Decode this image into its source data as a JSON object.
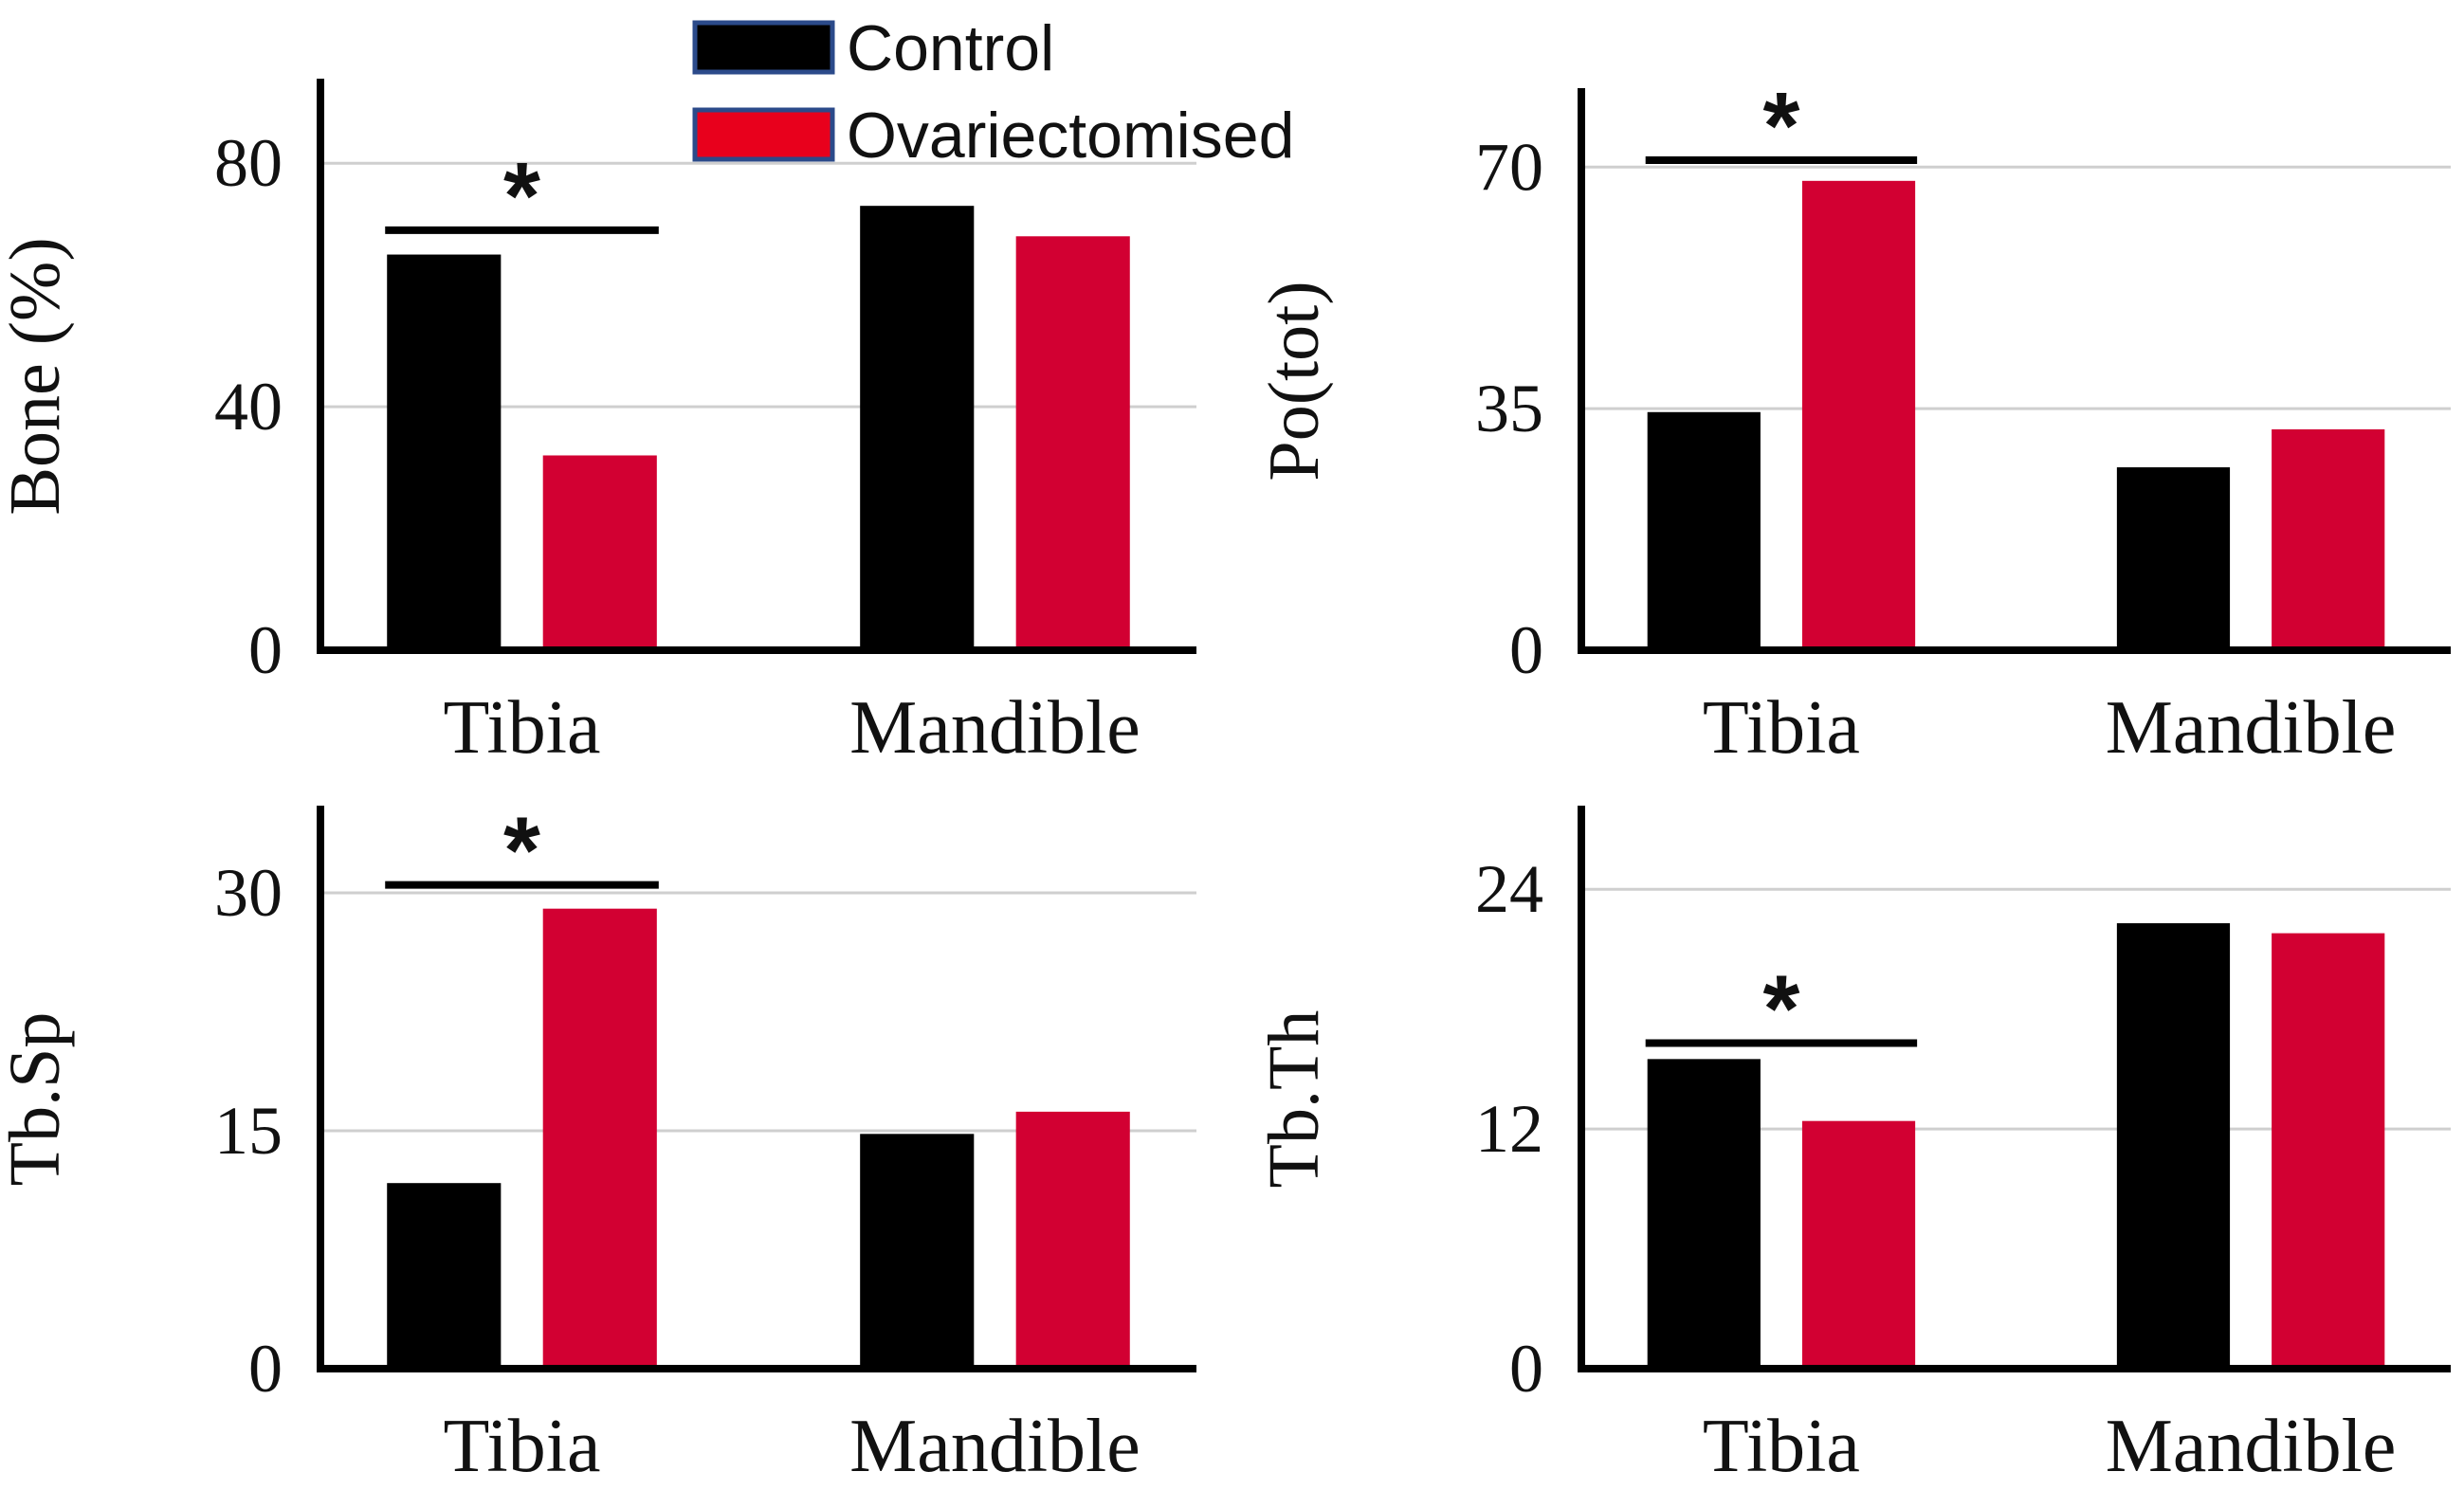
{
  "legend": {
    "entries": [
      {
        "name": "Control",
        "color": "#000000",
        "border": "#2b4a8a"
      },
      {
        "name": "Ovariectomised",
        "color": "#e8001c",
        "border": "#2b4a8a"
      }
    ]
  },
  "colors": {
    "control_bar": "#000000",
    "ovx_bar": "#d20032",
    "grid": "#cfcfcf",
    "axis": "#000000"
  },
  "chart_data": [
    {
      "type": "bar",
      "categories": [
        "Tibia",
        "Mandible"
      ],
      "ylabel": "Bone (%)",
      "ylim": [
        0,
        90
      ],
      "yticks": [
        0,
        40,
        80
      ],
      "ytick_labels": [
        "0",
        "40",
        "80"
      ],
      "grid": true,
      "series": [
        {
          "name": "Control",
          "values": [
            65,
            73
          ]
        },
        {
          "name": "Ovariectomised",
          "values": [
            32,
            68
          ]
        }
      ],
      "significance": [
        {
          "category": "Tibia",
          "label": "*",
          "level": 69
        }
      ]
    },
    {
      "type": "bar",
      "categories": [
        "Tibia",
        "Mandible"
      ],
      "ylabel": "Po(tot)",
      "ylim": [
        0,
        78
      ],
      "yticks": [
        0,
        35,
        70
      ],
      "ytick_labels": [
        "0",
        "35",
        "70"
      ],
      "grid": true,
      "series": [
        {
          "name": "Control",
          "values": [
            34.5,
            26.5
          ]
        },
        {
          "name": "Ovariectomised",
          "values": [
            68,
            32
          ]
        }
      ],
      "significance": [
        {
          "category": "Tibia",
          "label": "*",
          "level": 71
        }
      ]
    },
    {
      "type": "bar",
      "categories": [
        "Tibia",
        "Mandible"
      ],
      "ylabel": "Tb.Sp",
      "ylim": [
        0,
        34
      ],
      "yticks": [
        0,
        15,
        30
      ],
      "ytick_labels": [
        "0",
        "15",
        "30"
      ],
      "grid": true,
      "series": [
        {
          "name": "Control",
          "values": [
            11.7,
            14.8
          ]
        },
        {
          "name": "Ovariectomised",
          "values": [
            29,
            16.2
          ]
        }
      ],
      "significance": [
        {
          "category": "Tibia",
          "label": "*",
          "level": 30.5
        }
      ]
    },
    {
      "type": "bar",
      "categories": [
        "Tibia",
        "Mandible"
      ],
      "ylabel": "Tb.Th",
      "ylim": [
        0,
        27
      ],
      "yticks": [
        0,
        12,
        24
      ],
      "ytick_labels": [
        "0",
        "12",
        "24"
      ],
      "grid": true,
      "series": [
        {
          "name": "Control",
          "values": [
            15.5,
            22.3
          ]
        },
        {
          "name": "Ovariectomised",
          "values": [
            12.4,
            21.8
          ]
        }
      ],
      "significance": [
        {
          "category": "Tibia",
          "label": "*",
          "level": 16.3
        }
      ]
    }
  ]
}
